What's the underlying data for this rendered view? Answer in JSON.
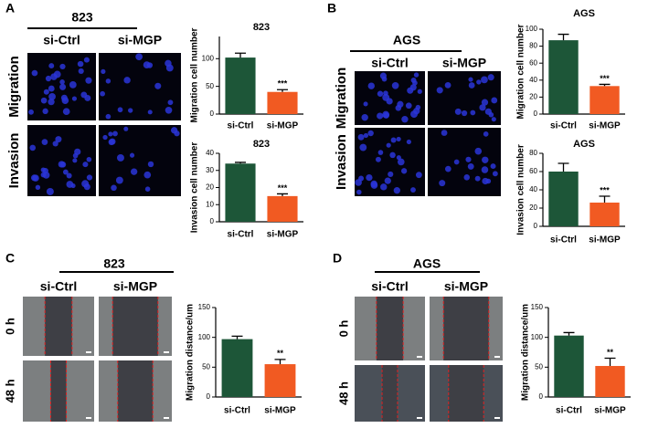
{
  "panels": [
    {
      "label": "A",
      "cell_line": "823",
      "columns": [
        "si-Ctrl",
        "si-MGP"
      ],
      "rows": [
        "Migration",
        "Invasion"
      ]
    },
    {
      "label": "B",
      "cell_line": "AGS",
      "columns": [
        "si-Ctrl",
        "si-MGP"
      ],
      "rows": [
        "Migration",
        "Invasion"
      ]
    },
    {
      "label": "C",
      "cell_line": "823",
      "columns": [
        "si-Ctrl",
        "si-MGP"
      ],
      "rows": [
        "0 h",
        "48 h"
      ]
    },
    {
      "label": "D",
      "cell_line": "AGS",
      "columns": [
        "si-Ctrl",
        "si-MGP"
      ],
      "rows": [
        "0 h",
        "48 h"
      ]
    }
  ],
  "chart_data": [
    {
      "type": "bar",
      "title": "823",
      "y_label": "Migration cell number",
      "categories": [
        "si-Ctrl",
        "si-MGP"
      ],
      "values": [
        102,
        40
      ],
      "errors": [
        8,
        4
      ],
      "colors": [
        "#1d5638",
        "#f15a22"
      ],
      "annotation": "***",
      "ylim": [
        0,
        140
      ],
      "yticks": [
        0,
        50,
        100
      ]
    },
    {
      "type": "bar",
      "title": "823",
      "y_label": "Invasion cell number",
      "categories": [
        "si-Ctrl",
        "si-MGP"
      ],
      "values": [
        34,
        15
      ],
      "errors": [
        0.7,
        1.3
      ],
      "colors": [
        "#1d5638",
        "#f15a22"
      ],
      "annotation": "***",
      "ylim": [
        0,
        40
      ],
      "yticks": [
        0,
        10,
        20,
        30,
        40
      ]
    },
    {
      "type": "bar",
      "title": "AGS",
      "y_label": "Migration cell number",
      "categories": [
        "si-Ctrl",
        "si-MGP"
      ],
      "values": [
        87,
        33
      ],
      "errors": [
        7,
        2
      ],
      "colors": [
        "#1d5638",
        "#f15a22"
      ],
      "annotation": "***",
      "ylim": [
        0,
        100
      ],
      "yticks": [
        0,
        20,
        40,
        60,
        80,
        100
      ]
    },
    {
      "type": "bar",
      "title": "AGS",
      "y_label": "Invasion cell number",
      "categories": [
        "si-Ctrl",
        "si-MGP"
      ],
      "values": [
        60,
        26
      ],
      "errors": [
        9,
        7
      ],
      "colors": [
        "#1d5638",
        "#f15a22"
      ],
      "annotation": "***",
      "ylim": [
        0,
        80
      ],
      "yticks": [
        0,
        20,
        40,
        60,
        80
      ]
    },
    {
      "type": "bar",
      "y_label": "Migration distance/um",
      "categories": [
        "si-Ctrl",
        "si-MGP"
      ],
      "values": [
        97,
        55
      ],
      "errors": [
        5,
        8
      ],
      "colors": [
        "#1d5638",
        "#f15a22"
      ],
      "annotation": "**",
      "ylim": [
        0,
        150
      ],
      "yticks": [
        0,
        50,
        100,
        150
      ]
    },
    {
      "type": "bar",
      "y_label": "Migration distance/um",
      "categories": [
        "si-Ctrl",
        "si-MGP"
      ],
      "values": [
        103,
        52
      ],
      "errors": [
        5,
        13
      ],
      "colors": [
        "#1d5638",
        "#f15a22"
      ],
      "annotation": "**",
      "ylim": [
        0,
        150
      ],
      "yticks": [
        0,
        50,
        100,
        150
      ]
    }
  ]
}
